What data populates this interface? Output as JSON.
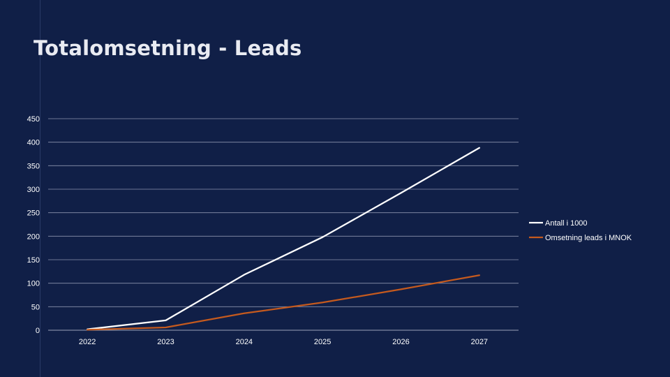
{
  "slide": {
    "title": "Totalomsetning - Leads"
  },
  "colors": {
    "background": "#101f47",
    "grid": "#8a93ad",
    "series_1": "#ffffff",
    "series_2": "#c55a1e"
  },
  "chart_data": {
    "type": "line",
    "title": "",
    "xlabel": "",
    "ylabel": "",
    "categories": [
      "2022",
      "2023",
      "2024",
      "2025",
      "2026",
      "2027"
    ],
    "ylim": [
      0,
      450
    ],
    "yticks": [
      0,
      50,
      100,
      150,
      200,
      250,
      300,
      350,
      400,
      450
    ],
    "grid": true,
    "legend_position": "right",
    "series": [
      {
        "name": "Antall i 1000",
        "values": [
          2,
          21,
          118,
          198,
          292,
          388
        ],
        "color": "#ffffff"
      },
      {
        "name": "Omsetning leads i MNOK",
        "values": [
          1,
          6,
          36,
          59,
          87,
          117
        ],
        "color": "#c55a1e"
      }
    ]
  }
}
